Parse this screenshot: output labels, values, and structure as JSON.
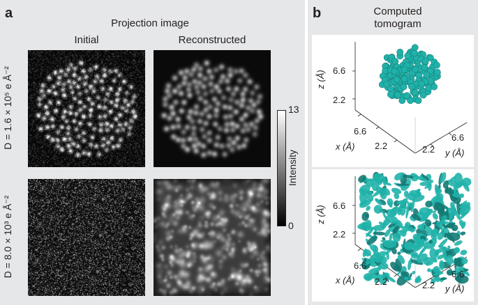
{
  "panel_a": {
    "letter": "a",
    "title": "Projection image",
    "col_initial": "Initial",
    "col_reconstructed": "Reconstructed",
    "row1_label": "D = 1.6 × 10⁵ e Å⁻²",
    "row2_label": "D = 8.0 × 10³ e Å⁻²",
    "colorbar": {
      "label": "Intensity",
      "max": "13",
      "min": "0"
    }
  },
  "panel_b": {
    "letter": "b",
    "title_line1": "Computed",
    "title_line2": "tomogram",
    "top_plot": {
      "z_label": "z (Å)",
      "z_ticks": [
        "6.6",
        "2.2"
      ],
      "x_label": "x (Å)",
      "x_ticks": [
        "6.6",
        "2.2"
      ],
      "y_label": "y (Å)",
      "y_ticks": [
        "2.2",
        "6.6"
      ]
    },
    "bottom_plot": {
      "z_label": "z (Å)",
      "z_ticks": [
        "6.6",
        "2.2"
      ],
      "x_label": "x (Å)",
      "x_ticks": [
        "6.6",
        "2.2"
      ],
      "y_label": "y (Å)",
      "y_ticks": [
        "2.2",
        "6.6"
      ]
    },
    "atom_color": "#20b2aa"
  }
}
